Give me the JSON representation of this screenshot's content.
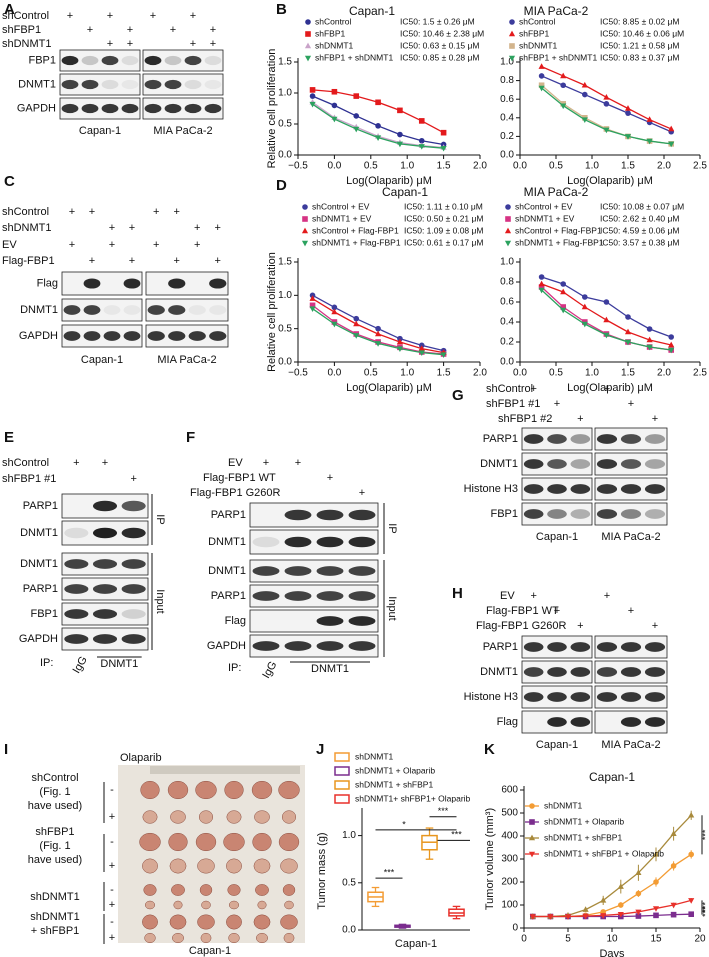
{
  "panel_labels": [
    "A",
    "B",
    "C",
    "D",
    "E",
    "F",
    "G",
    "H",
    "I",
    "J",
    "K"
  ],
  "blots": {
    "A": {
      "conditions": [
        "shControl",
        "shFBP1",
        "shDNMT1"
      ],
      "sign": "+",
      "rows": [
        "FBP1",
        "DNMT1",
        "GAPDH"
      ],
      "cells": [
        "Capan-1",
        "MIA PaCa-2"
      ]
    },
    "C": {
      "conditions": [
        "shControl",
        "shDNMT1",
        "EV",
        "Flag-FBP1"
      ],
      "sign": "+",
      "rows": [
        "Flag",
        "DNMT1",
        "GAPDH"
      ],
      "cells": [
        "Capan-1",
        "MIA PaCa-2"
      ]
    },
    "E": {
      "conditions": [
        "shControl",
        "shFBP1 #1"
      ],
      "sign": "+",
      "ip_rows": [
        "PARP1",
        "DNMT1"
      ],
      "input_rows": [
        "DNMT1",
        "PARP1",
        "FBP1",
        "GAPDH"
      ],
      "ip": "IP",
      "input": "Input",
      "ip_prefix": "IP:",
      "lanes": [
        "IgG",
        "DNMT1"
      ]
    },
    "F": {
      "conditions": [
        "EV",
        "Flag-FBP1 WT",
        "Flag-FBP1 G260R"
      ],
      "sign": "+",
      "ip_rows": [
        "PARP1",
        "DNMT1"
      ],
      "input_rows": [
        "DNMT1",
        "PARP1",
        "Flag",
        "GAPDH"
      ],
      "ip": "IP",
      "input": "Input",
      "ip_prefix": "IP:",
      "lanes": [
        "IgG",
        "DNMT1"
      ]
    },
    "G": {
      "conditions": [
        "shControl",
        "shFBP1 #1",
        "shFBP1 #2"
      ],
      "sign": "+",
      "rows": [
        "PARP1",
        "DNMT1",
        "Histone H3",
        "FBP1"
      ],
      "cells": [
        "Capan-1",
        "MIA PaCa-2"
      ]
    },
    "H": {
      "conditions": [
        "EV",
        "Flag-FBP1 WT",
        "Flag-FBP1 G260R"
      ],
      "sign": "+",
      "rows": [
        "PARP1",
        "DNMT1",
        "Histone H3",
        "Flag"
      ],
      "cells": [
        "Capan-1",
        "MIA PaCa-2"
      ]
    }
  },
  "photo": {
    "treatment": "Olaparib",
    "groups": [
      [
        "shControl",
        "(Fig. 1",
        "have used)"
      ],
      [
        "shFBP1",
        "(Fig. 1",
        "have used)"
      ],
      [
        "shDNMT1"
      ],
      [
        "shDNMT1",
        "+ shFBP1"
      ]
    ],
    "minus": "-",
    "plus": "+",
    "cell_line": "Capan-1"
  },
  "chart_data": [
    {
      "type": "line",
      "title": "Capan-1",
      "xlabel": "Log(Olaparib) μM",
      "ylabel": "Relative cell proliferation",
      "x": [
        -0.3,
        0,
        0.3,
        0.6,
        0.9,
        1.2,
        1.5
      ],
      "xlim": [
        -0.5,
        2.0
      ],
      "xticks": [
        {
          "value": -0.5,
          "label": "−0.5"
        },
        {
          "value": 0,
          "label": "0.0"
        },
        0.5,
        {
          "value": 1,
          "label": "1.0"
        },
        1.5,
        {
          "value": 2,
          "label": "2.0"
        }
      ],
      "ylim": [
        0,
        1.5
      ],
      "yticks": [
        {
          "value": 0,
          "label": "0.0"
        },
        0.5,
        {
          "value": 1,
          "label": "1.0"
        },
        1.5
      ],
      "series": [
        {
          "name": "shControl",
          "color": "#2e3192",
          "marker": "circle",
          "values": [
            0.95,
            0.8,
            0.63,
            0.47,
            0.33,
            0.23,
            0.17
          ],
          "annotation": "IC50: 1.5 ± 0.26 μM"
        },
        {
          "name": "shFBP1",
          "color": "#e31a1c",
          "marker": "square",
          "values": [
            1.05,
            1.02,
            0.95,
            0.85,
            0.72,
            0.55,
            0.36
          ],
          "annotation": "IC50: 10.46 ± 2.38 μM"
        },
        {
          "name": "shDNMT1",
          "color": "#c9a3c9",
          "marker": "triangle",
          "values": [
            0.85,
            0.6,
            0.45,
            0.3,
            0.2,
            0.15,
            0.12
          ],
          "annotation": "IC50: 0.63 ± 0.15 μM"
        },
        {
          "name": "shFBP1 + shDNMT1",
          "color": "#2ca25f",
          "marker": "triangle-down",
          "values": [
            0.82,
            0.58,
            0.42,
            0.28,
            0.18,
            0.14,
            0.11
          ],
          "annotation": "IC50: 0.85 ± 0.28 μM"
        }
      ]
    },
    {
      "type": "line",
      "title": "MIA PaCa-2",
      "xlabel": "Log(Olaparib) μM",
      "x": [
        0.3,
        0.6,
        0.9,
        1.2,
        1.5,
        1.8,
        2.1
      ],
      "xlim": [
        0,
        2.5
      ],
      "xticks": [
        {
          "value": 0,
          "label": "0.0"
        },
        0.5,
        {
          "value": 1,
          "label": "1.0"
        },
        1.5,
        {
          "value": 2,
          "label": "2.0"
        },
        2.5
      ],
      "ylim": [
        0,
        1.0
      ],
      "yticks": [
        {
          "value": 0,
          "label": "0.0"
        },
        0.2,
        0.4,
        0.6,
        0.8,
        {
          "value": 1,
          "label": "1.0"
        }
      ],
      "series": [
        {
          "name": "shControl",
          "color": "#3c3c9c",
          "marker": "circle",
          "values": [
            0.85,
            0.75,
            0.65,
            0.55,
            0.45,
            0.35,
            0.25
          ],
          "annotation": "IC50: 8.85 ± 0.02 μM"
        },
        {
          "name": "shFBP1",
          "color": "#e31a1c",
          "marker": "triangle",
          "values": [
            0.95,
            0.85,
            0.75,
            0.62,
            0.5,
            0.38,
            0.28
          ],
          "annotation": "IC50: 10.46 ± 0.06 μM"
        },
        {
          "name": "shDNMT1",
          "color": "#d2b48c",
          "marker": "square",
          "values": [
            0.75,
            0.55,
            0.4,
            0.28,
            0.2,
            0.15,
            0.12
          ],
          "annotation": "IC50: 1.21 ± 0.58 μM"
        },
        {
          "name": "shFBP1 + shDNMT1",
          "color": "#2ca25f",
          "marker": "triangle-down",
          "values": [
            0.72,
            0.53,
            0.38,
            0.27,
            0.2,
            0.15,
            0.12
          ],
          "annotation": "IC50: 0.83 ± 0.37 μM"
        }
      ]
    },
    {
      "type": "line",
      "title": "Capan-1",
      "xlabel": "Log(Olaparib) μM",
      "ylabel": "Relative cell proliferation",
      "x": [
        -0.3,
        0,
        0.3,
        0.6,
        0.9,
        1.2,
        1.5
      ],
      "xlim": [
        -0.5,
        2.0
      ],
      "xticks": [
        {
          "value": -0.5,
          "label": "−0.5"
        },
        {
          "value": 0,
          "label": "0.0"
        },
        0.5,
        {
          "value": 1,
          "label": "1.0"
        },
        1.5,
        {
          "value": 2,
          "label": "2.0"
        }
      ],
      "ylim": [
        0,
        1.5
      ],
      "yticks": [
        {
          "value": 0,
          "label": "0.0"
        },
        0.5,
        {
          "value": 1,
          "label": "1.0"
        },
        1.5
      ],
      "series": [
        {
          "name": "shControl + EV",
          "color": "#3c3c9c",
          "marker": "circle",
          "values": [
            1.0,
            0.82,
            0.65,
            0.5,
            0.35,
            0.25,
            0.17
          ],
          "annotation": "IC50: 1.11 ± 0.10 μM"
        },
        {
          "name": "shDNMT1 + EV",
          "color": "#d63384",
          "marker": "square",
          "values": [
            0.85,
            0.6,
            0.42,
            0.3,
            0.22,
            0.15,
            0.12
          ],
          "annotation": "IC50: 0.50 ± 0.21 μM"
        },
        {
          "name": "shControl + Flag-FBP1",
          "color": "#e31a1c",
          "marker": "triangle",
          "values": [
            0.95,
            0.75,
            0.57,
            0.42,
            0.3,
            0.2,
            0.14
          ],
          "annotation": "IC50: 1.09 ± 0.08 μM"
        },
        {
          "name": "shDNMT1 + Flag-FBP1",
          "color": "#2ca25f",
          "marker": "triangle-down",
          "values": [
            0.8,
            0.57,
            0.4,
            0.28,
            0.2,
            0.14,
            0.11
          ],
          "annotation": "IC50: 0.61 ± 0.17 μM"
        }
      ]
    },
    {
      "type": "line",
      "title": "MIA PaCa-2",
      "xlabel": "Log(Olaparib) μM",
      "x": [
        0.3,
        0.6,
        0.9,
        1.2,
        1.5,
        1.8,
        2.1
      ],
      "xlim": [
        0,
        2.5
      ],
      "xticks": [
        {
          "value": 0,
          "label": "0.0"
        },
        0.5,
        {
          "value": 1,
          "label": "1.0"
        },
        1.5,
        {
          "value": 2,
          "label": "2.0"
        },
        2.5
      ],
      "ylim": [
        0,
        1.0
      ],
      "yticks": [
        {
          "value": 0,
          "label": "0.0"
        },
        0.2,
        0.4,
        0.6,
        0.8,
        {
          "value": 1,
          "label": "1.0"
        }
      ],
      "series": [
        {
          "name": "shControl + EV",
          "color": "#3c3c9c",
          "marker": "circle",
          "values": [
            0.85,
            0.78,
            0.65,
            0.6,
            0.45,
            0.33,
            0.25
          ],
          "annotation": "IC50: 10.08 ± 0.07 μM"
        },
        {
          "name": "shDNMT1 + EV",
          "color": "#d63384",
          "marker": "square",
          "values": [
            0.75,
            0.55,
            0.4,
            0.28,
            0.2,
            0.15,
            0.12
          ],
          "annotation": "IC50: 2.62 ± 0.40 μM"
        },
        {
          "name": "shControl + Flag-FBP1",
          "color": "#e31a1c",
          "marker": "triangle",
          "values": [
            0.78,
            0.7,
            0.55,
            0.42,
            0.3,
            0.22,
            0.17
          ],
          "annotation": "IC50: 4.59 ± 0.06 μM"
        },
        {
          "name": "shDNMT1 + Flag-FBP1",
          "color": "#2ca25f",
          "marker": "triangle-down",
          "values": [
            0.72,
            0.52,
            0.38,
            0.27,
            0.2,
            0.15,
            0.12
          ],
          "annotation": "IC50: 3.57 ± 0.38 μM"
        }
      ]
    },
    {
      "type": "box",
      "ylabel": "Tumor mass (g)",
      "xlabel": "Capan-1",
      "ylim": [
        0,
        1.25
      ],
      "yticks": [
        {
          "value": 0,
          "label": "0.0"
        },
        0.5,
        {
          "value": 1,
          "label": "1.0"
        }
      ],
      "series": [
        {
          "name": "shDNMT1",
          "color": "#f39c34",
          "values": [
            0.25,
            0.3,
            0.35,
            0.4,
            0.45
          ]
        },
        {
          "name": "shDNMT1 + Olaparib",
          "color": "#7b2d8e",
          "values": [
            0.02,
            0.03,
            0.04,
            0.05,
            0.06
          ]
        },
        {
          "name": "shDNMT1 + shFBP1",
          "color": "#e8961e",
          "values": [
            0.75,
            0.85,
            0.93,
            1.0,
            1.08
          ]
        },
        {
          "name": "shDNMT1+ shFBP1+ Olaparib",
          "color": "#e8312b",
          "values": [
            0.12,
            0.15,
            0.18,
            0.22,
            0.25
          ]
        }
      ],
      "annotations": [
        "***",
        "*",
        "***",
        "***"
      ]
    },
    {
      "type": "line",
      "title": "Capan-1",
      "xlabel": "Days",
      "ylabel": "Tumor volume (mm³)",
      "x": [
        1,
        3,
        5,
        7,
        9,
        11,
        13,
        15,
        17,
        19
      ],
      "xlim": [
        0,
        20
      ],
      "xticks": [
        0,
        5,
        10,
        15,
        20
      ],
      "ylim": [
        0,
        600
      ],
      "yticks": [
        0,
        100,
        200,
        300,
        400,
        500,
        600
      ],
      "series": [
        {
          "name": "shDNMT1",
          "color": "#f39c34",
          "marker": "circle",
          "values": [
            50,
            50,
            50,
            55,
            70,
            100,
            150,
            200,
            270,
            320
          ],
          "errors": [
            3,
            3,
            4,
            5,
            8,
            12,
            15,
            20,
            20,
            18
          ]
        },
        {
          "name": "shDNMT1 + Olaparib",
          "color": "#7b2d8e",
          "marker": "square",
          "values": [
            50,
            50,
            50,
            50,
            50,
            50,
            52,
            55,
            58,
            60
          ],
          "errors": [
            2,
            2,
            2,
            3,
            3,
            3,
            4,
            4,
            5,
            5
          ]
        },
        {
          "name": "shDNMT1 + shFBP1",
          "color": "#a88a3c",
          "marker": "triangle",
          "values": [
            50,
            50,
            55,
            80,
            120,
            180,
            240,
            320,
            410,
            490
          ],
          "errors": [
            3,
            3,
            5,
            10,
            20,
            30,
            35,
            30,
            30,
            20
          ]
        },
        {
          "name": "shDNMT1 + shFBP1 + Olaparib",
          "color": "#e8312b",
          "marker": "triangle-down",
          "values": [
            50,
            50,
            50,
            52,
            55,
            60,
            70,
            85,
            100,
            120
          ],
          "errors": [
            2,
            2,
            3,
            3,
            4,
            5,
            6,
            8,
            10,
            10
          ]
        }
      ],
      "annotations": [
        "***",
        "***",
        "***"
      ]
    }
  ]
}
